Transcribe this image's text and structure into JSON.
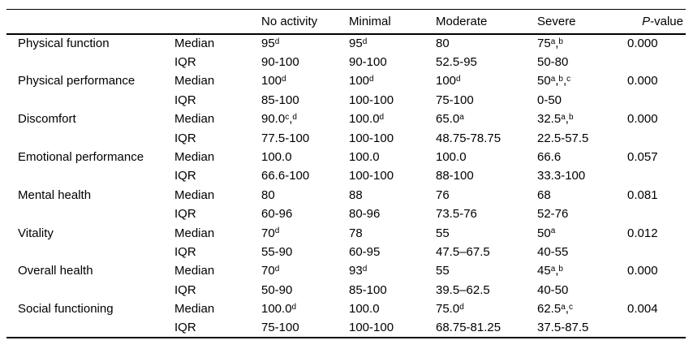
{
  "table": {
    "headers": {
      "label": "",
      "stat": "",
      "no_activity": "No activity",
      "minimal": "Minimal",
      "moderate": "Moderate",
      "severe": "Severe",
      "pvalue_italic": "P",
      "pvalue_rest": "-value"
    },
    "rows": [
      {
        "label": "Physical function",
        "stat": "Median",
        "no_activity": "95^{d}",
        "minimal": "95^{d}",
        "moderate": "80",
        "severe": "75^{a},^{b}",
        "pvalue": "0.000"
      },
      {
        "label": "",
        "stat": "IQR",
        "no_activity": "90-100",
        "minimal": "90-100",
        "moderate": "52.5-95",
        "severe": "50-80",
        "pvalue": ""
      },
      {
        "label": "Physical performance",
        "stat": "Median",
        "no_activity": "100^{d}",
        "minimal": "100^{d}",
        "moderate": "100^{d}",
        "severe": "50^{a},^{b},^{c}",
        "pvalue": "0.000"
      },
      {
        "label": "",
        "stat": "IQR",
        "no_activity": "85-100",
        "minimal": "100-100",
        "moderate": "75-100",
        "severe": "0-50",
        "pvalue": ""
      },
      {
        "label": "Discomfort",
        "stat": "Median",
        "no_activity": "90.0^{c},^{d}",
        "minimal": "100.0^{d}",
        "moderate": "65.0^{a}",
        "severe": "32.5^{a},^{b}",
        "pvalue": "0.000"
      },
      {
        "label": "",
        "stat": "IQR",
        "no_activity": "77.5-100",
        "minimal": "100-100",
        "moderate": "48.75-78.75",
        "severe": "22.5-57.5",
        "pvalue": ""
      },
      {
        "label": "Emotional performance",
        "stat": "Median",
        "no_activity": "100.0",
        "minimal": "100.0",
        "moderate": "100.0",
        "severe": "66.6",
        "pvalue": "0.057"
      },
      {
        "label": "",
        "stat": "IQR",
        "no_activity": "66.6-100",
        "minimal": "100-100",
        "moderate": "88-100",
        "severe": "33.3-100",
        "pvalue": ""
      },
      {
        "label": "Mental health",
        "stat": "Median",
        "no_activity": "80",
        "minimal": "88",
        "moderate": "76",
        "severe": "68",
        "pvalue": "0.081"
      },
      {
        "label": "",
        "stat": "IQR",
        "no_activity": "60-96",
        "minimal": "80-96",
        "moderate": "73.5-76",
        "severe": "52-76",
        "pvalue": ""
      },
      {
        "label": "Vitality",
        "stat": "Median",
        "no_activity": "70^{d}",
        "minimal": "78",
        "moderate": "55",
        "severe": "50^{a}",
        "pvalue": "0.012"
      },
      {
        "label": "",
        "stat": "IQR",
        "no_activity": "55-90",
        "minimal": "60-95",
        "moderate": "47.5–67.5",
        "severe": "40-55",
        "pvalue": ""
      },
      {
        "label": "Overall health",
        "stat": "Median",
        "no_activity": "70^{d}",
        "minimal": "93^{d}",
        "moderate": "55",
        "severe": "45^{a},^{b}",
        "pvalue": "0.000"
      },
      {
        "label": "",
        "stat": "IQR",
        "no_activity": "50-90",
        "minimal": "85-100",
        "moderate": "39.5–62.5",
        "severe": "40-50",
        "pvalue": ""
      },
      {
        "label": "Social functioning",
        "stat": "Median",
        "no_activity": "100.0^{d}",
        "minimal": "100.0",
        "moderate": "75.0^{d}",
        "severe": "62.5^{a},^{c}",
        "pvalue": "0.004"
      },
      {
        "label": "",
        "stat": "IQR",
        "no_activity": "75-100",
        "minimal": "100-100",
        "moderate": "68.75-81.25",
        "severe": "37.5-87.5",
        "pvalue": ""
      }
    ]
  }
}
